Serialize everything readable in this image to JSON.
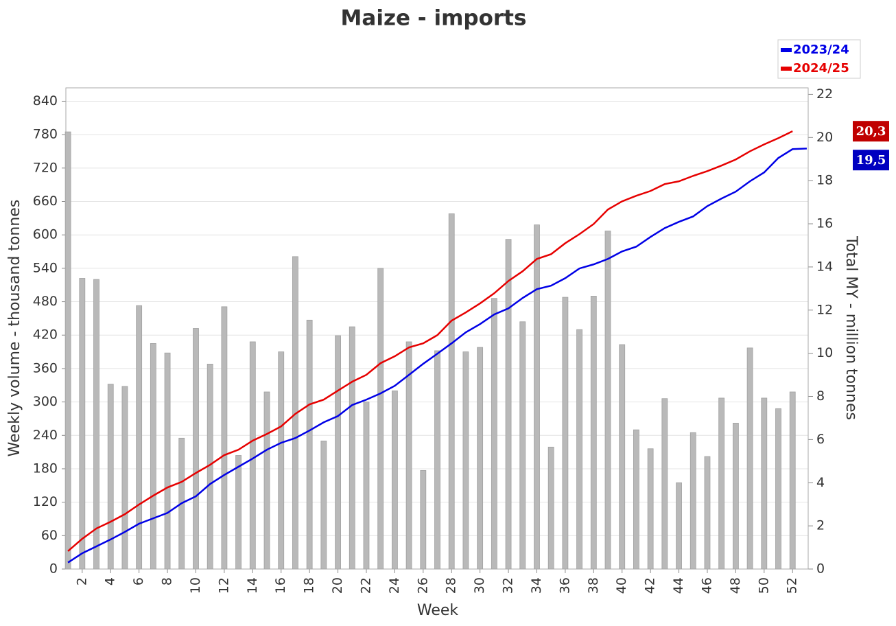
{
  "chart_data": {
    "type": "combo",
    "title": "Maize - imports",
    "xlabel": "Week",
    "ylabel": "Weekly volume - thousand tonnes",
    "y2label": "Total MY - million tonnes",
    "x": [
      1,
      2,
      3,
      4,
      5,
      6,
      7,
      8,
      9,
      10,
      11,
      12,
      13,
      14,
      15,
      16,
      17,
      18,
      19,
      20,
      21,
      22,
      23,
      24,
      25,
      26,
      27,
      28,
      29,
      30,
      31,
      32,
      33,
      34,
      35,
      36,
      37,
      38,
      39,
      40,
      41,
      42,
      43,
      44,
      45,
      46,
      47,
      48,
      49,
      50,
      51,
      52,
      53
    ],
    "xlim": [
      0.85,
      53.1
    ],
    "xticks": [
      2,
      4,
      6,
      8,
      10,
      12,
      14,
      16,
      18,
      20,
      22,
      24,
      26,
      28,
      30,
      32,
      34,
      36,
      38,
      40,
      42,
      44,
      46,
      48,
      50,
      52
    ],
    "ylim": [
      0,
      864
    ],
    "yticks": [
      0,
      60,
      120,
      180,
      240,
      300,
      360,
      420,
      480,
      540,
      600,
      660,
      720,
      780,
      840
    ],
    "y2lim": [
      0,
      22.3
    ],
    "y2ticks": [
      0,
      2,
      4,
      6,
      8,
      10,
      12,
      14,
      16,
      18,
      20,
      22
    ],
    "grid": true,
    "legend": "top-right",
    "bars": {
      "color": "#b9b9b9",
      "values": [
        785,
        522,
        520,
        332,
        328,
        473,
        405,
        388,
        235,
        432,
        368,
        471,
        204,
        408,
        318,
        390,
        561,
        447,
        230,
        419,
        435,
        300,
        540,
        320,
        408,
        177,
        392,
        638,
        390,
        398,
        486,
        592,
        444,
        618,
        219,
        488,
        430,
        490,
        607,
        403,
        250,
        216,
        306,
        155,
        245,
        202,
        307,
        262,
        397,
        307,
        288,
        318,
        null
      ]
    },
    "series": [
      {
        "name": "2023/24",
        "color": "#0000e6",
        "axis": "y2",
        "end_label": "19,5",
        "values": [
          0.3,
          0.73,
          1.05,
          1.37,
          1.72,
          2.1,
          2.35,
          2.6,
          3.05,
          3.37,
          3.94,
          4.36,
          4.74,
          5.12,
          5.53,
          5.85,
          6.07,
          6.42,
          6.8,
          7.09,
          7.6,
          7.85,
          8.14,
          8.49,
          9.0,
          9.51,
          9.98,
          10.46,
          10.97,
          11.35,
          11.8,
          12.08,
          12.56,
          12.97,
          13.13,
          13.48,
          13.93,
          14.12,
          14.37,
          14.72,
          14.94,
          15.39,
          15.8,
          16.09,
          16.34,
          16.82,
          17.17,
          17.49,
          17.97,
          18.38,
          19.05,
          19.46,
          19.49
        ]
      },
      {
        "name": "2024/25",
        "color": "#e60000",
        "axis": "y2",
        "end_label": "20,3",
        "values": [
          0.83,
          1.4,
          1.88,
          2.19,
          2.54,
          2.99,
          3.4,
          3.78,
          4.04,
          4.45,
          4.83,
          5.28,
          5.53,
          5.95,
          6.26,
          6.61,
          7.19,
          7.63,
          7.85,
          8.27,
          8.68,
          9.0,
          9.54,
          9.86,
          10.27,
          10.46,
          10.84,
          11.51,
          11.89,
          12.31,
          12.78,
          13.35,
          13.8,
          14.37,
          14.59,
          15.1,
          15.52,
          15.99,
          16.66,
          17.04,
          17.3,
          17.52,
          17.84,
          17.97,
          18.22,
          18.44,
          18.7,
          18.98,
          19.36,
          19.68,
          19.97,
          20.29,
          null
        ]
      }
    ]
  }
}
